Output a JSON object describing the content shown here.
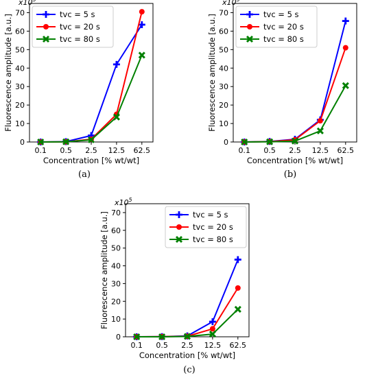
{
  "colors": {
    "blue": "#0000ff",
    "red": "#ff0000",
    "green": "#008000"
  },
  "chart_data": [
    {
      "type": "line",
      "panel_label": "(a)",
      "multiplier": "x10",
      "multiplier_exp": "5",
      "xlabel": "Concentration [% wt/wt]",
      "ylabel": "Fluorescence amplitude [a.u.]",
      "categories": [
        "0.1",
        "0.5",
        "2.5",
        "12.5",
        "62.5"
      ],
      "ylim": [
        0,
        75
      ],
      "yticks": [
        "0",
        "10",
        "20",
        "30",
        "40",
        "50",
        "60",
        "70"
      ],
      "legend_position": "top-left",
      "series": [
        {
          "name": "tvc = 5 s",
          "color": "#0000ff",
          "marker": "plus",
          "values": [
            0,
            0.2,
            3.5,
            42,
            63.5
          ]
        },
        {
          "name": "tvc = 20 s",
          "color": "#ff0000",
          "marker": "circle",
          "values": [
            0,
            0.1,
            1.5,
            15,
            70.5
          ]
        },
        {
          "name": "tvc = 80 s",
          "color": "#008000",
          "marker": "x",
          "values": [
            0,
            0.1,
            1.2,
            13.5,
            47
          ]
        }
      ]
    },
    {
      "type": "line",
      "panel_label": "(b)",
      "multiplier": "x10",
      "multiplier_exp": "5",
      "xlabel": "Concentration [% wt/wt]",
      "ylabel": "Fluorescence amplitude [a.u.]",
      "categories": [
        "0.1",
        "0.5",
        "2.5",
        "12.5",
        "62.5"
      ],
      "ylim": [
        0,
        75
      ],
      "yticks": [
        "0",
        "10",
        "20",
        "30",
        "40",
        "50",
        "60",
        "70"
      ],
      "legend_position": "top-left",
      "series": [
        {
          "name": "tvc = 5 s",
          "color": "#0000ff",
          "marker": "plus",
          "values": [
            0,
            0.3,
            1.5,
            12,
            65.5
          ]
        },
        {
          "name": "tvc = 20 s",
          "color": "#ff0000",
          "marker": "circle",
          "values": [
            0,
            0.2,
            1.2,
            11.5,
            51
          ]
        },
        {
          "name": "tvc = 80 s",
          "color": "#008000",
          "marker": "x",
          "values": [
            0,
            0.1,
            0.5,
            6,
            30.5
          ]
        }
      ]
    },
    {
      "type": "line",
      "panel_label": "(c)",
      "multiplier": "x10",
      "multiplier_exp": "5",
      "xlabel": "Concentration [% wt/wt]",
      "ylabel": "Fluorescence amplitude [a.u.]",
      "categories": [
        "0.1",
        "0.5",
        "2.5",
        "12.5",
        "62.5"
      ],
      "ylim": [
        0,
        75
      ],
      "yticks": [
        "0",
        "10",
        "20",
        "30",
        "40",
        "50",
        "60",
        "70"
      ],
      "legend_position": "top-right",
      "series": [
        {
          "name": "tvc = 5 s",
          "color": "#0000ff",
          "marker": "plus",
          "values": [
            0,
            0.1,
            0.5,
            8.5,
            43.5
          ]
        },
        {
          "name": "tvc = 20 s",
          "color": "#ff0000",
          "marker": "circle",
          "values": [
            0,
            0.1,
            0.3,
            4.5,
            27.5
          ]
        },
        {
          "name": "tvc = 80 s",
          "color": "#008000",
          "marker": "x",
          "values": [
            0,
            0,
            0.2,
            1.5,
            15.5
          ]
        }
      ]
    }
  ]
}
